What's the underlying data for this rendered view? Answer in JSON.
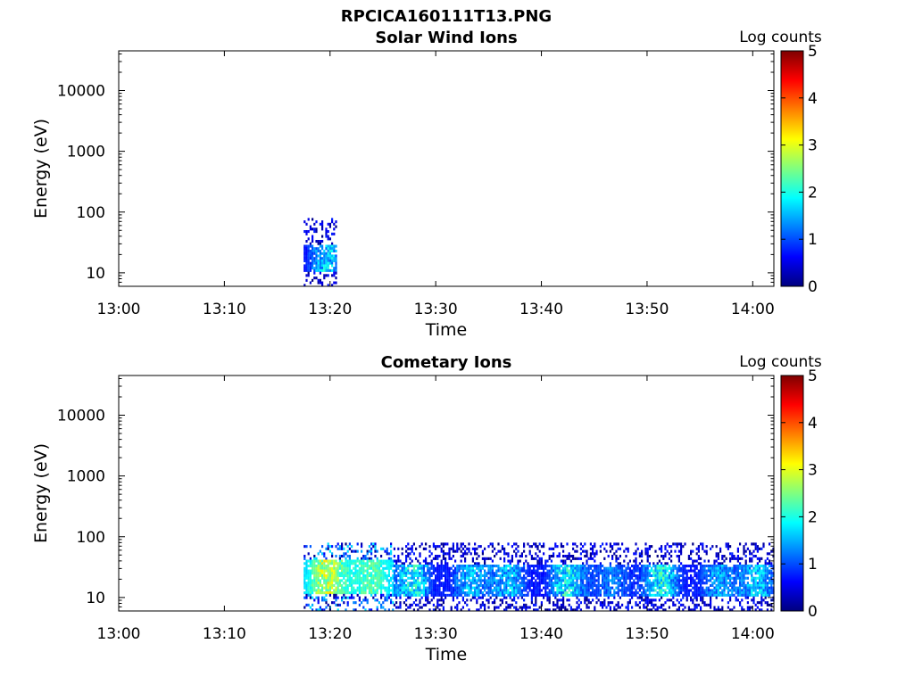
{
  "figure_title": "RPCICA160111T13.PNG",
  "chart_data": [
    {
      "type": "heatmap",
      "title": "Solar Wind Ions",
      "xlabel": "Time",
      "ylabel": "Energy (eV)",
      "x_range": [
        "13:00",
        "14:02"
      ],
      "x_ticks": [
        "13:00",
        "13:10",
        "13:20",
        "13:30",
        "13:40",
        "13:50",
        "14:00"
      ],
      "y_scale": "log",
      "y_range": [
        6,
        45000
      ],
      "y_ticks": [
        10,
        100,
        1000,
        10000
      ],
      "colorbar": {
        "label": "Log counts",
        "range": [
          0,
          5
        ],
        "ticks": [
          0,
          1,
          2,
          3,
          4,
          5
        ],
        "colormap": "jet"
      },
      "data_regions": [
        {
          "t_start": "13:17:30",
          "t_end": "13:20:30",
          "e_min": 6,
          "e_max": 80,
          "core_e_min": 10,
          "core_e_max": 30,
          "typical_log_counts": [
            0.5,
            2.0
          ]
        }
      ]
    },
    {
      "type": "heatmap",
      "title": "Cometary Ions",
      "xlabel": "Time",
      "ylabel": "Energy (eV)",
      "x_range": [
        "13:00",
        "14:02"
      ],
      "x_ticks": [
        "13:00",
        "13:10",
        "13:20",
        "13:30",
        "13:40",
        "13:50",
        "14:00"
      ],
      "y_scale": "log",
      "y_range": [
        6,
        45000
      ],
      "y_ticks": [
        10,
        100,
        1000,
        10000
      ],
      "colorbar": {
        "label": "Log counts",
        "range": [
          0,
          5
        ],
        "ticks": [
          0,
          1,
          2,
          3,
          4,
          5
        ],
        "colormap": "jet"
      },
      "data_regions": [
        {
          "t_start": "13:17:30",
          "t_end": "13:26:00",
          "e_min": 6,
          "e_max": 80,
          "core_e_min": 12,
          "core_e_max": 40,
          "typical_log_counts": [
            1.5,
            3.2
          ]
        },
        {
          "t_start": "13:26:00",
          "t_end": "14:02:00",
          "e_min": 6,
          "e_max": 80,
          "core_e_min": 10,
          "core_e_max": 35,
          "typical_log_counts": [
            0.5,
            2.2
          ]
        }
      ]
    }
  ]
}
